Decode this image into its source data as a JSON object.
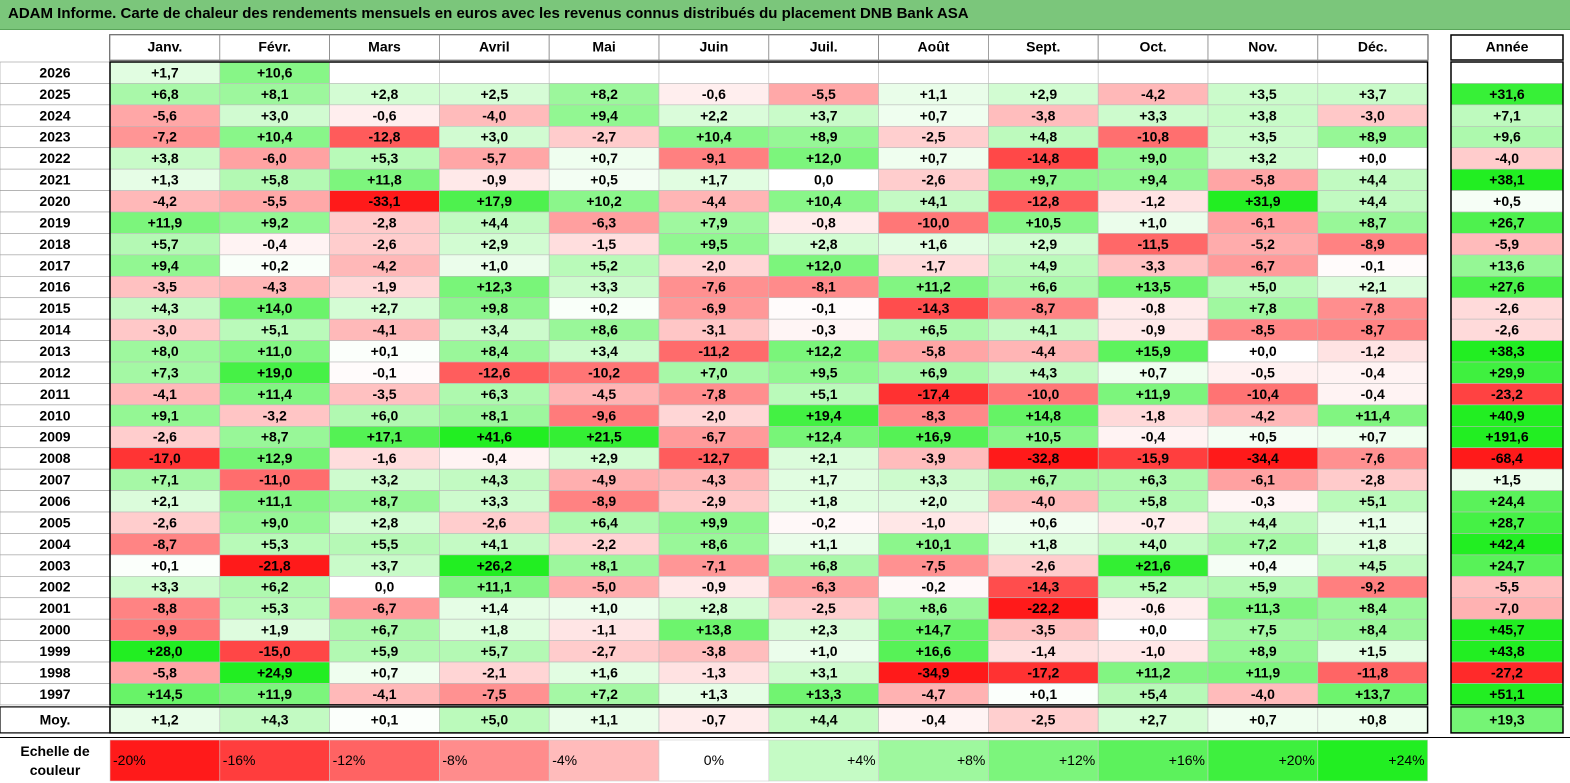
{
  "title": "ADAM Informe. Carte de chaleur des rendements mensuels en euros avec les revenus connus distribués du placement DNB Bank ASA",
  "colors": {
    "title_bg": "#7bc67b",
    "positive_max": "#22ee22",
    "negative_max": "#ff1a1a",
    "neutral": "#ffffff"
  },
  "chart_data": {
    "type": "heatmap",
    "title": "ADAM Informe. Carte de chaleur des rendements mensuels en euros avec les revenus connus distribués du placement DNB Bank ASA",
    "months": [
      "Janv.",
      "Févr.",
      "Mars",
      "Avril",
      "Mai",
      "Juin",
      "Juil.",
      "Août",
      "Sept.",
      "Oct.",
      "Nov.",
      "Déc."
    ],
    "year_col_label": "Année",
    "rows": [
      {
        "year": "2026",
        "months": [
          "+1,7",
          "+10,6",
          "",
          "",
          "",
          "",
          "",
          "",
          "",
          "",
          "",
          ""
        ],
        "annual": ""
      },
      {
        "year": "2025",
        "months": [
          "+6,8",
          "+8,1",
          "+2,8",
          "+2,5",
          "+8,2",
          "-0,6",
          "-5,5",
          "+1,1",
          "+2,9",
          "-4,2",
          "+3,5",
          "+3,7"
        ],
        "annual": "+31,6"
      },
      {
        "year": "2024",
        "months": [
          "-5,6",
          "+3,0",
          "-0,6",
          "-4,0",
          "+9,4",
          "+2,2",
          "+3,7",
          "+0,7",
          "-3,8",
          "+3,3",
          "+3,8",
          "-3,0"
        ],
        "annual": "+7,1"
      },
      {
        "year": "2023",
        "months": [
          "-7,2",
          "+10,4",
          "-12,8",
          "+3,0",
          "-2,7",
          "+10,4",
          "+8,9",
          "-2,5",
          "+4,8",
          "-10,8",
          "+3,5",
          "+8,9"
        ],
        "annual": "+9,6"
      },
      {
        "year": "2022",
        "months": [
          "+3,8",
          "-6,0",
          "+5,3",
          "-5,7",
          "+0,7",
          "-9,1",
          "+12,0",
          "+0,7",
          "-14,8",
          "+9,0",
          "+3,2",
          "+0,0"
        ],
        "annual": "-4,0"
      },
      {
        "year": "2021",
        "months": [
          "+1,3",
          "+5,8",
          "+11,8",
          "-0,9",
          "+0,5",
          "+1,7",
          "0,0",
          "-2,6",
          "+9,7",
          "+9,4",
          "-5,8",
          "+4,4"
        ],
        "annual": "+38,1"
      },
      {
        "year": "2020",
        "months": [
          "-4,2",
          "-5,5",
          "-33,1",
          "+17,9",
          "+10,2",
          "-4,4",
          "+10,4",
          "+4,1",
          "-12,8",
          "-1,2",
          "+31,9",
          "+4,4"
        ],
        "annual": "+0,5"
      },
      {
        "year": "2019",
        "months": [
          "+11,9",
          "+9,2",
          "-2,8",
          "+4,4",
          "-6,3",
          "+7,9",
          "-0,8",
          "-10,0",
          "+10,5",
          "+1,0",
          "-6,1",
          "+8,7"
        ],
        "annual": "+26,7"
      },
      {
        "year": "2018",
        "months": [
          "+5,7",
          "-0,4",
          "-2,6",
          "+2,9",
          "-1,5",
          "+9,5",
          "+2,8",
          "+1,6",
          "+2,9",
          "-11,5",
          "-5,2",
          "-8,9"
        ],
        "annual": "-5,9"
      },
      {
        "year": "2017",
        "months": [
          "+9,4",
          "+0,2",
          "-4,2",
          "+1,0",
          "+5,2",
          "-2,0",
          "+12,0",
          "-1,7",
          "+4,9",
          "-3,3",
          "-6,7",
          "-0,1"
        ],
        "annual": "+13,6"
      },
      {
        "year": "2016",
        "months": [
          "-3,5",
          "-4,3",
          "-1,9",
          "+12,3",
          "+3,3",
          "-7,6",
          "-8,1",
          "+11,2",
          "+6,6",
          "+13,5",
          "+5,0",
          "+2,1"
        ],
        "annual": "+27,6"
      },
      {
        "year": "2015",
        "months": [
          "+4,3",
          "+14,0",
          "+2,7",
          "+9,8",
          "+0,2",
          "-6,9",
          "-0,1",
          "-14,3",
          "-8,7",
          "-0,8",
          "+7,8",
          "-7,8"
        ],
        "annual": "-2,6"
      },
      {
        "year": "2014",
        "months": [
          "-3,0",
          "+5,1",
          "-4,1",
          "+3,4",
          "+8,6",
          "-3,1",
          "-0,3",
          "+6,5",
          "+4,1",
          "-0,9",
          "-8,5",
          "-8,7"
        ],
        "annual": "-2,6"
      },
      {
        "year": "2013",
        "months": [
          "+8,0",
          "+11,0",
          "+0,1",
          "+8,4",
          "+3,4",
          "-11,2",
          "+12,2",
          "-5,8",
          "-4,4",
          "+15,9",
          "+0,0",
          "-1,2"
        ],
        "annual": "+38,3"
      },
      {
        "year": "2012",
        "months": [
          "+7,3",
          "+19,0",
          "-0,1",
          "-12,6",
          "-10,2",
          "+7,0",
          "+9,5",
          "+6,9",
          "+4,3",
          "+0,7",
          "-0,5",
          "-0,4"
        ],
        "annual": "+29,9"
      },
      {
        "year": "2011",
        "months": [
          "-4,1",
          "+11,4",
          "-3,5",
          "+6,3",
          "-4,5",
          "-7,8",
          "+5,1",
          "-17,4",
          "-10,0",
          "+11,9",
          "-10,4",
          "-0,4"
        ],
        "annual": "-23,2"
      },
      {
        "year": "2010",
        "months": [
          "+9,1",
          "-3,2",
          "+6,0",
          "+8,1",
          "-9,6",
          "-2,0",
          "+19,4",
          "-8,3",
          "+14,8",
          "-1,8",
          "-4,2",
          "+11,4"
        ],
        "annual": "+40,9"
      },
      {
        "year": "2009",
        "months": [
          "-2,6",
          "+8,7",
          "+17,1",
          "+41,6",
          "+21,5",
          "-6,7",
          "+12,4",
          "+16,9",
          "+10,5",
          "-0,4",
          "+0,5",
          "+0,7"
        ],
        "annual": "+191,6"
      },
      {
        "year": "2008",
        "months": [
          "-17,0",
          "+12,9",
          "-1,6",
          "-0,4",
          "+2,9",
          "-12,7",
          "+2,1",
          "-3,9",
          "-32,8",
          "-15,9",
          "-34,4",
          "-7,6"
        ],
        "annual": "-68,4"
      },
      {
        "year": "2007",
        "months": [
          "+7,1",
          "-11,0",
          "+3,2",
          "+4,3",
          "-4,9",
          "-4,3",
          "+1,7",
          "+3,3",
          "+6,7",
          "+6,3",
          "-6,1",
          "-2,8"
        ],
        "annual": "+1,5"
      },
      {
        "year": "2006",
        "months": [
          "+2,1",
          "+11,1",
          "+8,7",
          "+3,3",
          "-8,9",
          "-2,9",
          "+1,8",
          "+2,0",
          "-4,0",
          "+5,8",
          "-0,3",
          "+5,1"
        ],
        "annual": "+24,4"
      },
      {
        "year": "2005",
        "months": [
          "-2,6",
          "+9,0",
          "+2,8",
          "-2,6",
          "+6,4",
          "+9,9",
          "-0,2",
          "-1,0",
          "+0,6",
          "-0,7",
          "+4,4",
          "+1,1"
        ],
        "annual": "+28,7"
      },
      {
        "year": "2004",
        "months": [
          "-8,7",
          "+5,3",
          "+5,5",
          "+4,1",
          "-2,2",
          "+8,6",
          "+1,1",
          "+10,1",
          "+1,8",
          "+4,0",
          "+7,2",
          "+1,8"
        ],
        "annual": "+42,4"
      },
      {
        "year": "2003",
        "months": [
          "+0,1",
          "-21,8",
          "+3,7",
          "+26,2",
          "+8,1",
          "-7,1",
          "+6,8",
          "-7,5",
          "-2,6",
          "+21,6",
          "+0,4",
          "+4,5"
        ],
        "annual": "+24,7"
      },
      {
        "year": "2002",
        "months": [
          "+3,3",
          "+6,2",
          "0,0",
          "+11,1",
          "-5,0",
          "-0,9",
          "-6,3",
          "-0,2",
          "-14,3",
          "+5,2",
          "+5,9",
          "-9,2"
        ],
        "annual": "-5,5"
      },
      {
        "year": "2001",
        "months": [
          "-8,8",
          "+5,3",
          "-6,7",
          "+1,4",
          "+1,0",
          "+2,8",
          "-2,5",
          "+8,6",
          "-22,2",
          "-0,6",
          "+11,3",
          "+8,4"
        ],
        "annual": "-7,0"
      },
      {
        "year": "2000",
        "months": [
          "-9,9",
          "+1,9",
          "+6,7",
          "+1,8",
          "-1,1",
          "+13,8",
          "+2,3",
          "+14,7",
          "-3,5",
          "+0,0",
          "+7,5",
          "+8,4"
        ],
        "annual": "+45,7"
      },
      {
        "year": "1999",
        "months": [
          "+28,0",
          "-15,0",
          "+5,9",
          "+5,7",
          "-2,7",
          "-3,8",
          "+1,0",
          "+16,6",
          "-1,4",
          "-1,0",
          "+8,9",
          "+1,5"
        ],
        "annual": "+43,8"
      },
      {
        "year": "1998",
        "months": [
          "-5,8",
          "+24,9",
          "+0,7",
          "-2,1",
          "+1,6",
          "-1,3",
          "+3,1",
          "-34,9",
          "-17,2",
          "+11,2",
          "+11,9",
          "-11,8"
        ],
        "annual": "-27,2"
      },
      {
        "year": "1997",
        "months": [
          "+14,5",
          "+11,9",
          "-4,1",
          "-7,5",
          "+7,2",
          "+1,3",
          "+13,3",
          "-4,7",
          "+0,1",
          "+5,4",
          "-4,0",
          "+13,7"
        ],
        "annual": "+51,1"
      }
    ],
    "average": {
      "label": "Moy.",
      "months": [
        "+1,2",
        "+4,3",
        "+0,1",
        "+5,0",
        "+1,1",
        "-0,7",
        "+4,4",
        "-0,4",
        "-2,5",
        "+2,7",
        "+0,7",
        "+0,8"
      ],
      "annual": "+19,3"
    },
    "scale": {
      "label": "Echelle de couleur",
      "steps": [
        {
          "text": "-20%",
          "value": -20
        },
        {
          "text": "-16%",
          "value": -16
        },
        {
          "text": "-12%",
          "value": -12
        },
        {
          "text": "-8%",
          "value": -8
        },
        {
          "text": "-4%",
          "value": -4
        },
        {
          "text": "0%",
          "value": 0
        },
        {
          "text": "+4%",
          "value": 4
        },
        {
          "text": "+8%",
          "value": 8
        },
        {
          "text": "+12%",
          "value": 12
        },
        {
          "text": "+16%",
          "value": 16
        },
        {
          "text": "+20%",
          "value": 20
        },
        {
          "text": "+24%",
          "value": 24
        }
      ]
    }
  }
}
